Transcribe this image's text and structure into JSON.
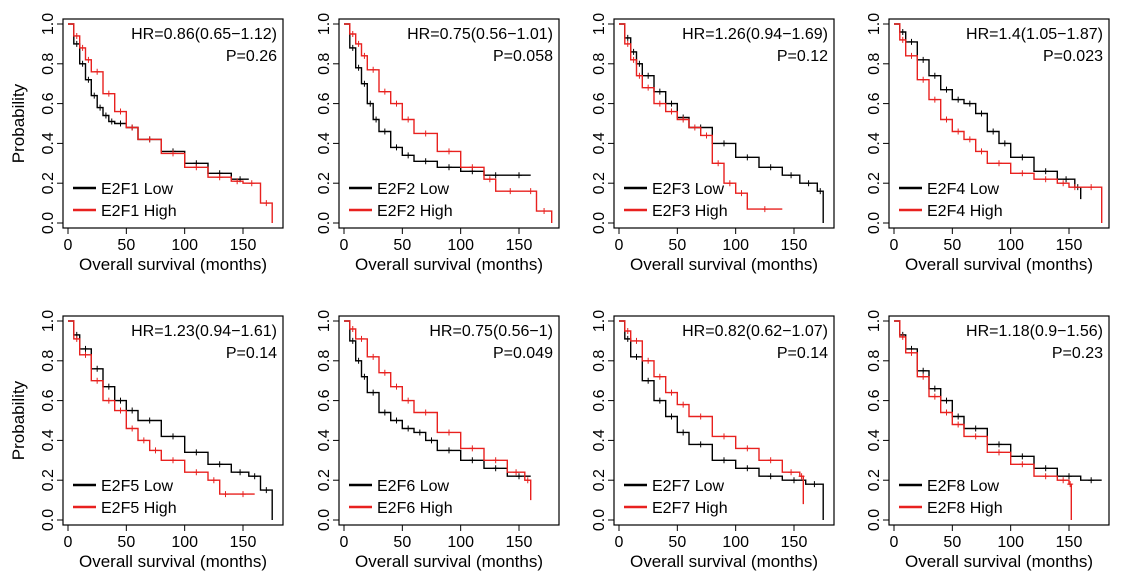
{
  "chart_data": [
    {
      "type": "line",
      "title": "",
      "xlabel": "Overall survival (months)",
      "ylabel": "Probability",
      "xlim": [
        0,
        180
      ],
      "ylim": [
        0,
        1
      ],
      "xticks": [
        "0",
        "50",
        "100",
        "150"
      ],
      "yticks": [
        "0.0",
        "0.2",
        "0.4",
        "0.6",
        "0.8",
        "1.0"
      ],
      "hr": "HR=0.86(0.65−1.12)",
      "p": "P=0.26",
      "legend_position": "bottom-left",
      "series": [
        {
          "name": "E2F1 Low",
          "color": "#000000",
          "x": [
            0,
            5,
            10,
            15,
            20,
            25,
            30,
            35,
            40,
            50,
            60,
            80,
            100,
            120,
            140,
            155
          ],
          "y": [
            1.0,
            0.9,
            0.8,
            0.72,
            0.64,
            0.58,
            0.54,
            0.51,
            0.5,
            0.48,
            0.42,
            0.36,
            0.3,
            0.25,
            0.22,
            0.22
          ]
        },
        {
          "name": "E2F1 High",
          "color": "#e8211f",
          "x": [
            0,
            5,
            10,
            15,
            20,
            30,
            40,
            50,
            60,
            80,
            100,
            120,
            140,
            150,
            165,
            175
          ],
          "y": [
            1.0,
            0.94,
            0.88,
            0.82,
            0.76,
            0.65,
            0.56,
            0.48,
            0.42,
            0.35,
            0.28,
            0.23,
            0.21,
            0.2,
            0.1,
            0.0
          ]
        }
      ]
    },
    {
      "type": "line",
      "title": "",
      "xlabel": "Overall survival (months)",
      "ylabel": "",
      "xlim": [
        0,
        180
      ],
      "ylim": [
        0,
        1
      ],
      "xticks": [
        "0",
        "50",
        "100",
        "150"
      ],
      "yticks": [
        "0.0",
        "0.2",
        "0.4",
        "0.6",
        "0.8",
        "1.0"
      ],
      "hr": "HR=0.75(0.56−1.01)",
      "p": "P=0.058",
      "legend_position": "bottom-left",
      "series": [
        {
          "name": "E2F2 Low",
          "color": "#000000",
          "x": [
            0,
            5,
            10,
            15,
            20,
            25,
            30,
            40,
            50,
            60,
            80,
            100,
            120,
            140,
            160
          ],
          "y": [
            1.0,
            0.88,
            0.78,
            0.7,
            0.6,
            0.52,
            0.46,
            0.38,
            0.34,
            0.31,
            0.28,
            0.26,
            0.24,
            0.24,
            0.24
          ]
        },
        {
          "name": "E2F2 High",
          "color": "#e8211f",
          "x": [
            0,
            5,
            10,
            15,
            20,
            30,
            40,
            50,
            60,
            80,
            100,
            120,
            130,
            155,
            165,
            178
          ],
          "y": [
            1.0,
            0.95,
            0.9,
            0.84,
            0.77,
            0.66,
            0.6,
            0.52,
            0.45,
            0.36,
            0.28,
            0.22,
            0.16,
            0.16,
            0.06,
            0.0
          ]
        }
      ]
    },
    {
      "type": "line",
      "title": "",
      "xlabel": "Overall survival (months)",
      "ylabel": "",
      "xlim": [
        0,
        180
      ],
      "ylim": [
        0,
        1
      ],
      "xticks": [
        "0",
        "50",
        "100",
        "150"
      ],
      "yticks": [
        "0.0",
        "0.2",
        "0.4",
        "0.6",
        "0.8",
        "1.0"
      ],
      "hr": "HR=1.26(0.94−1.69)",
      "p": "P=0.12",
      "legend_position": "bottom-left",
      "series": [
        {
          "name": "E2F3 Low",
          "color": "#000000",
          "x": [
            0,
            5,
            10,
            15,
            20,
            30,
            40,
            50,
            60,
            80,
            100,
            120,
            140,
            155,
            170,
            175
          ],
          "y": [
            1.0,
            0.93,
            0.86,
            0.8,
            0.74,
            0.66,
            0.6,
            0.53,
            0.48,
            0.4,
            0.33,
            0.28,
            0.24,
            0.2,
            0.16,
            0.0
          ]
        },
        {
          "name": "E2F3 High",
          "color": "#e8211f",
          "x": [
            0,
            5,
            10,
            15,
            20,
            30,
            40,
            50,
            60,
            70,
            80,
            90,
            100,
            110,
            140
          ],
          "y": [
            1.0,
            0.9,
            0.82,
            0.74,
            0.68,
            0.6,
            0.56,
            0.52,
            0.48,
            0.44,
            0.3,
            0.2,
            0.15,
            0.07,
            0.07
          ]
        }
      ]
    },
    {
      "type": "line",
      "title": "",
      "xlabel": "Overall survival (months)",
      "ylabel": "",
      "xlim": [
        0,
        180
      ],
      "ylim": [
        0,
        1
      ],
      "xticks": [
        "0",
        "50",
        "100",
        "150"
      ],
      "yticks": [
        "0.0",
        "0.2",
        "0.4",
        "0.6",
        "0.8",
        "1.0"
      ],
      "hr": "HR=1.4(1.05−1.87)",
      "p": "P=0.023",
      "legend_position": "bottom-left",
      "series": [
        {
          "name": "E2F4 Low",
          "color": "#000000",
          "x": [
            0,
            5,
            10,
            20,
            30,
            40,
            50,
            60,
            70,
            80,
            90,
            100,
            120,
            140,
            155,
            160
          ],
          "y": [
            1.0,
            0.96,
            0.91,
            0.82,
            0.74,
            0.67,
            0.62,
            0.6,
            0.55,
            0.46,
            0.4,
            0.33,
            0.26,
            0.22,
            0.18,
            0.12
          ]
        },
        {
          "name": "E2F4 High",
          "color": "#e8211f",
          "x": [
            0,
            5,
            10,
            20,
            30,
            40,
            50,
            60,
            70,
            80,
            100,
            120,
            140,
            150,
            160,
            178
          ],
          "y": [
            1.0,
            0.92,
            0.84,
            0.72,
            0.62,
            0.52,
            0.46,
            0.42,
            0.36,
            0.3,
            0.25,
            0.22,
            0.2,
            0.18,
            0.18,
            0.0
          ]
        }
      ]
    },
    {
      "type": "line",
      "title": "",
      "xlabel": "Overall survival (months)",
      "ylabel": "Probability",
      "xlim": [
        0,
        180
      ],
      "ylim": [
        0,
        1
      ],
      "xticks": [
        "0",
        "50",
        "100",
        "150"
      ],
      "yticks": [
        "0.0",
        "0.2",
        "0.4",
        "0.6",
        "0.8",
        "1.0"
      ],
      "hr": "HR=1.23(0.94−1.61)",
      "p": "P=0.14",
      "legend_position": "bottom-left",
      "series": [
        {
          "name": "E2F5 Low",
          "color": "#000000",
          "x": [
            0,
            5,
            10,
            20,
            30,
            40,
            50,
            60,
            80,
            100,
            120,
            140,
            155,
            165,
            175
          ],
          "y": [
            1.0,
            0.93,
            0.86,
            0.76,
            0.67,
            0.6,
            0.55,
            0.5,
            0.42,
            0.34,
            0.28,
            0.24,
            0.22,
            0.15,
            0.0
          ]
        },
        {
          "name": "E2F5 High",
          "color": "#e8211f",
          "x": [
            0,
            5,
            10,
            20,
            30,
            40,
            50,
            60,
            70,
            80,
            100,
            120,
            130,
            140,
            160
          ],
          "y": [
            1.0,
            0.91,
            0.83,
            0.7,
            0.6,
            0.55,
            0.46,
            0.4,
            0.35,
            0.3,
            0.24,
            0.2,
            0.13,
            0.13,
            0.13
          ]
        }
      ]
    },
    {
      "type": "line",
      "title": "",
      "xlabel": "Overall survival (months)",
      "ylabel": "",
      "xlim": [
        0,
        180
      ],
      "ylim": [
        0,
        1
      ],
      "xticks": [
        "0",
        "50",
        "100",
        "150"
      ],
      "yticks": [
        "0.0",
        "0.2",
        "0.4",
        "0.6",
        "0.8",
        "1.0"
      ],
      "hr": "HR=0.75(0.56−1)",
      "p": "P=0.049",
      "legend_position": "bottom-left",
      "series": [
        {
          "name": "E2F6 Low",
          "color": "#000000",
          "x": [
            0,
            5,
            10,
            15,
            20,
            30,
            40,
            50,
            60,
            70,
            80,
            100,
            120,
            140,
            160
          ],
          "y": [
            1.0,
            0.9,
            0.8,
            0.72,
            0.64,
            0.54,
            0.5,
            0.46,
            0.44,
            0.4,
            0.35,
            0.3,
            0.26,
            0.22,
            0.22
          ]
        },
        {
          "name": "E2F6 High",
          "color": "#e8211f",
          "x": [
            0,
            5,
            10,
            20,
            30,
            40,
            50,
            60,
            80,
            100,
            120,
            140,
            155,
            160
          ],
          "y": [
            1.0,
            0.96,
            0.91,
            0.82,
            0.74,
            0.67,
            0.6,
            0.54,
            0.44,
            0.36,
            0.3,
            0.24,
            0.2,
            0.1
          ]
        }
      ]
    },
    {
      "type": "line",
      "title": "",
      "xlabel": "Overall survival (months)",
      "ylabel": "",
      "xlim": [
        0,
        180
      ],
      "ylim": [
        0,
        1
      ],
      "xticks": [
        "0",
        "50",
        "100",
        "150"
      ],
      "yticks": [
        "0.0",
        "0.2",
        "0.4",
        "0.6",
        "0.8",
        "1.0"
      ],
      "hr": "HR=0.82(0.62−1.07)",
      "p": "P=0.14",
      "legend_position": "bottom-left",
      "series": [
        {
          "name": "E2F7 Low",
          "color": "#000000",
          "x": [
            0,
            5,
            10,
            20,
            30,
            40,
            50,
            60,
            80,
            100,
            120,
            140,
            160,
            175
          ],
          "y": [
            1.0,
            0.91,
            0.82,
            0.7,
            0.6,
            0.52,
            0.44,
            0.38,
            0.3,
            0.26,
            0.22,
            0.2,
            0.18,
            0.0
          ]
        },
        {
          "name": "E2F7 High",
          "color": "#e8211f",
          "x": [
            0,
            5,
            10,
            20,
            30,
            40,
            50,
            60,
            80,
            100,
            120,
            140,
            155,
            158
          ],
          "y": [
            1.0,
            0.95,
            0.9,
            0.8,
            0.72,
            0.64,
            0.58,
            0.52,
            0.42,
            0.36,
            0.3,
            0.24,
            0.22,
            0.08
          ]
        }
      ]
    },
    {
      "type": "line",
      "title": "",
      "xlabel": "Overall survival (months)",
      "ylabel": "",
      "xlim": [
        0,
        180
      ],
      "ylim": [
        0,
        1
      ],
      "xticks": [
        "0",
        "50",
        "100",
        "150"
      ],
      "yticks": [
        "0.0",
        "0.2",
        "0.4",
        "0.6",
        "0.8",
        "1.0"
      ],
      "hr": "HR=1.18(0.9−1.56)",
      "p": "P=0.23",
      "legend_position": "bottom-left",
      "series": [
        {
          "name": "E2F8 Low",
          "color": "#000000",
          "x": [
            0,
            5,
            10,
            20,
            30,
            40,
            50,
            60,
            80,
            100,
            120,
            140,
            160,
            178
          ],
          "y": [
            1.0,
            0.93,
            0.86,
            0.75,
            0.66,
            0.6,
            0.52,
            0.46,
            0.38,
            0.32,
            0.26,
            0.22,
            0.2,
            0.2
          ]
        },
        {
          "name": "E2F8 High",
          "color": "#e8211f",
          "x": [
            0,
            5,
            10,
            20,
            30,
            40,
            50,
            60,
            80,
            100,
            120,
            140,
            150,
            152
          ],
          "y": [
            1.0,
            0.92,
            0.84,
            0.72,
            0.62,
            0.54,
            0.48,
            0.42,
            0.34,
            0.28,
            0.22,
            0.2,
            0.18,
            0.0
          ]
        }
      ]
    }
  ]
}
